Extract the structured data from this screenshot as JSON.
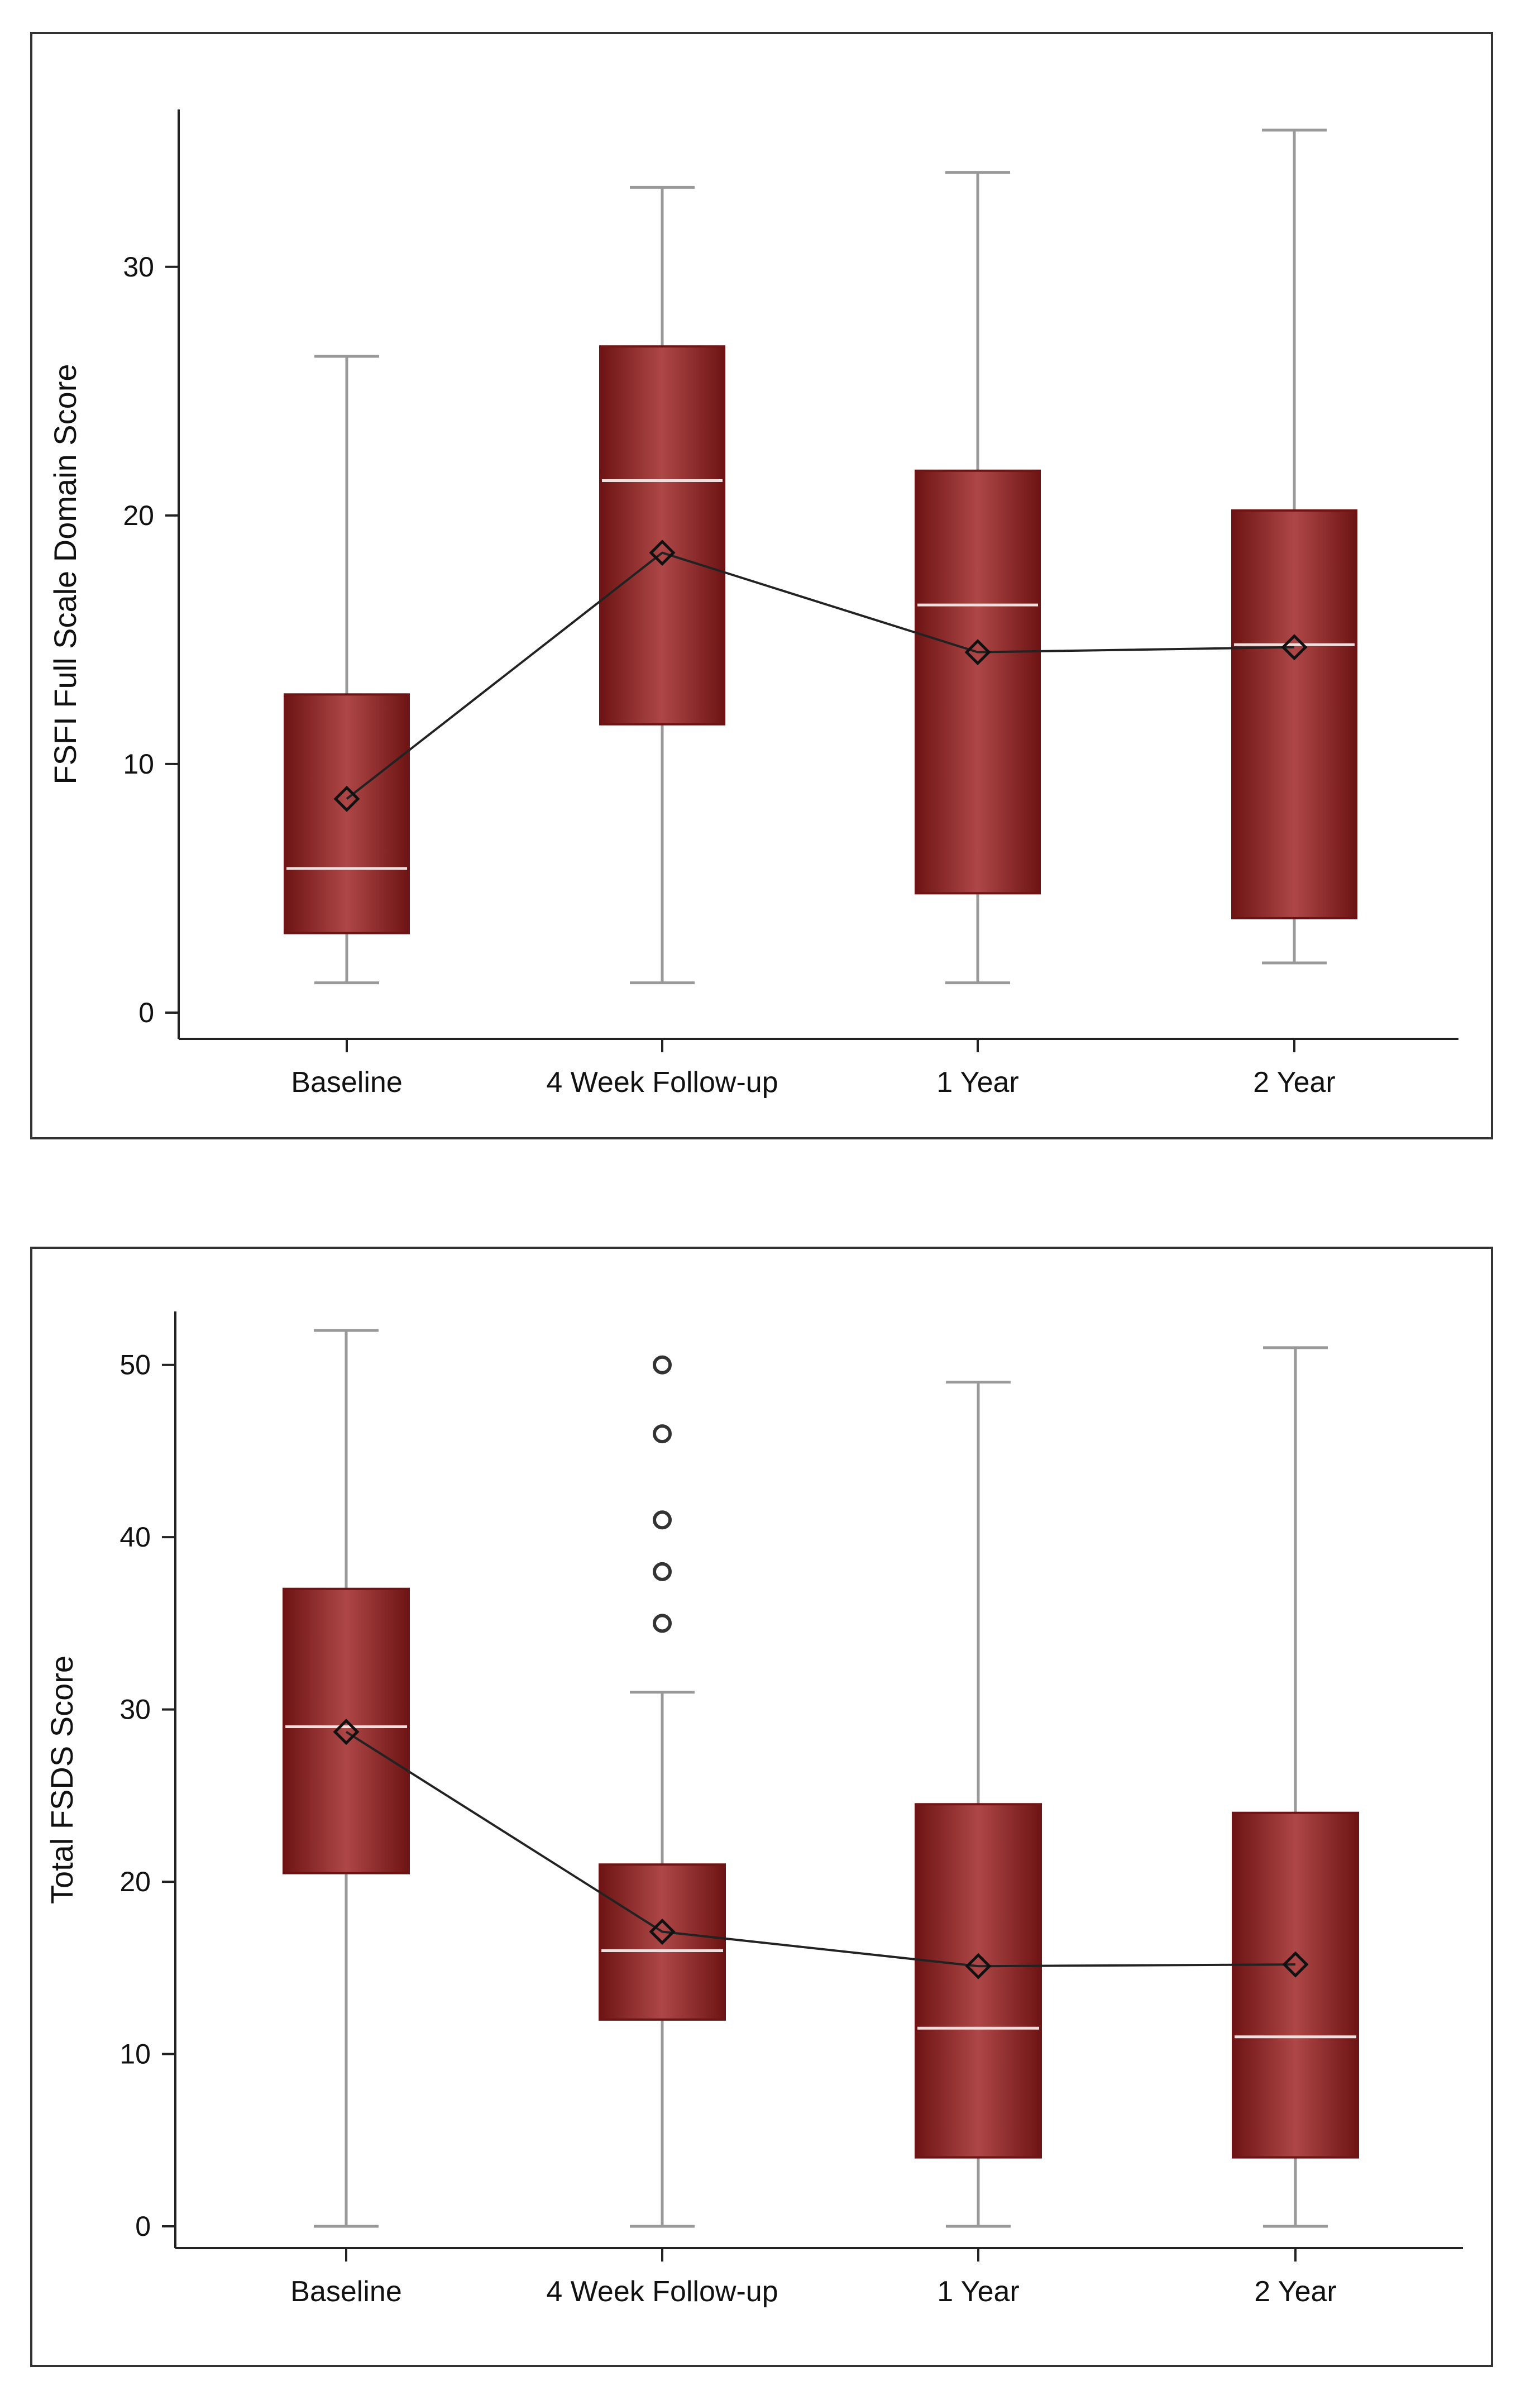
{
  "colors": {
    "box_dark": "#6e1414",
    "box_mid": "#ae4747",
    "whisker": "#999999",
    "median": "#f1dede",
    "mean_line": "#222222"
  },
  "chart_data": [
    {
      "type": "box",
      "title": "",
      "xlabel": "",
      "ylabel": "FSFI Full Scale Domain Score",
      "ylim": [
        0,
        35.5
      ],
      "yticks": [
        0,
        10,
        20,
        30
      ],
      "categories": [
        "Baseline",
        "4 Week Follow-up",
        "1 Year",
        "2 Year"
      ],
      "boxes": [
        {
          "category": "Baseline",
          "min": 1.2,
          "q1": 3.2,
          "median": 5.8,
          "q3": 12.8,
          "max": 26.4,
          "mean": 8.6,
          "outliers": []
        },
        {
          "category": "4 Week Follow-up",
          "min": 1.2,
          "q1": 11.6,
          "median": 21.4,
          "q3": 26.8,
          "max": 33.2,
          "mean": 18.5,
          "outliers": []
        },
        {
          "category": "1 Year",
          "min": 1.2,
          "q1": 4.8,
          "median": 16.4,
          "q3": 21.8,
          "max": 33.8,
          "mean": 14.5,
          "outliers": []
        },
        {
          "category": "2 Year",
          "min": 2.0,
          "q1": 3.8,
          "median": 14.8,
          "q3": 20.2,
          "max": 35.5,
          "mean": 14.7,
          "outliers": []
        }
      ]
    },
    {
      "type": "box",
      "title": "",
      "xlabel": "",
      "ylabel": "Total FSDS Score",
      "ylim": [
        0,
        52
      ],
      "yticks": [
        0,
        10,
        20,
        30,
        40,
        50
      ],
      "categories": [
        "Baseline",
        "4 Week Follow-up",
        "1 Year",
        "2 Year"
      ],
      "boxes": [
        {
          "category": "Baseline",
          "min": 0,
          "q1": 20.5,
          "median": 29,
          "q3": 37,
          "max": 52,
          "mean": 28.7,
          "outliers": []
        },
        {
          "category": "4 Week Follow-up",
          "min": 0,
          "q1": 12,
          "median": 16,
          "q3": 21,
          "max": 31,
          "mean": 17.1,
          "outliers": [
            35,
            38,
            41,
            46,
            50
          ]
        },
        {
          "category": "1 Year",
          "min": 0,
          "q1": 4,
          "median": 11.5,
          "q3": 24.5,
          "max": 49,
          "mean": 15.1,
          "outliers": []
        },
        {
          "category": "2 Year",
          "min": 0,
          "q1": 4,
          "median": 11,
          "q3": 24,
          "max": 51,
          "mean": 15.2,
          "outliers": []
        }
      ]
    }
  ]
}
